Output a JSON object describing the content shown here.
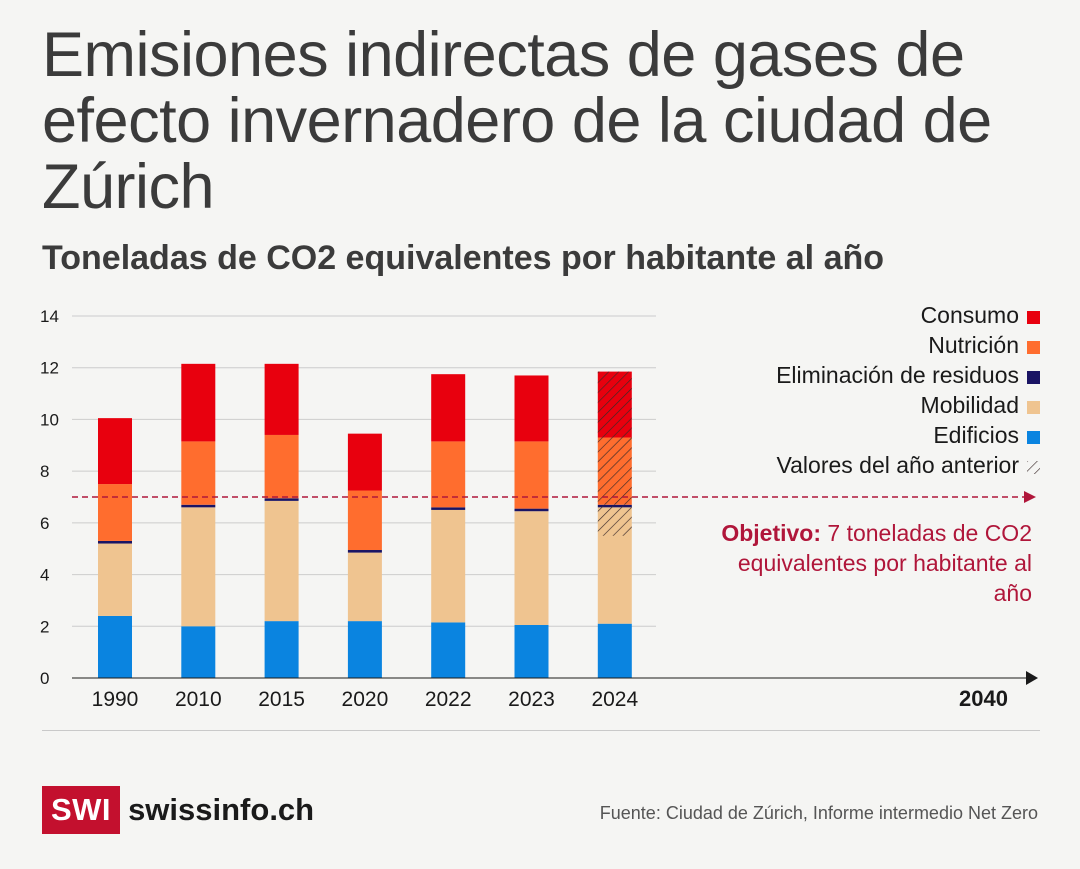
{
  "title": "Emisiones indirectas de gases de efecto invernadero de la ciudad de Zúrich",
  "subtitle": "Toneladas de CO2 equivalentes por habitante al año",
  "legend": {
    "consumo": "Consumo",
    "nutricion": "Nutrición",
    "residuos": "Eliminación de residuos",
    "mobilidad": "Mobilidad",
    "edificios": "Edificios",
    "anterior": "Valores del año anterior"
  },
  "objective": {
    "bold": "Objetivo:",
    "text": " 7 toneladas de CO2 equivalentes por habitante al año"
  },
  "source": "Fuente: Ciudad de Zúrich, Informe intermedio Net Zero",
  "logo": {
    "box": "SWI",
    "text": "swissinfo.ch"
  },
  "colors": {
    "consumo": "#e8000e",
    "nutricion": "#ff6d2e",
    "residuos": "#1a1464",
    "mobilidad": "#efc490",
    "edificios": "#0a84e0",
    "target": "#b0163a",
    "grid": "#cccccc",
    "axis": "#1a1a1a"
  },
  "chart_data": {
    "type": "bar",
    "stacked": true,
    "title": "Emisiones indirectas de gases de efecto invernadero de la ciudad de Zúrich",
    "ylabel": "Toneladas de CO2 equivalentes por habitante al año",
    "ylim": [
      0,
      14
    ],
    "yticks": [
      0,
      2,
      4,
      6,
      8,
      10,
      12,
      14
    ],
    "grid": true,
    "legend_position": "top-right",
    "categories": [
      "1990",
      "2010",
      "2015",
      "2020",
      "2022",
      "2023",
      "2024"
    ],
    "x_axis_end_label": "2040",
    "target": 7,
    "series": [
      {
        "name": "Edificios",
        "key": "edificios",
        "values": [
          2.4,
          2.0,
          2.2,
          2.2,
          2.15,
          2.05,
          2.1
        ]
      },
      {
        "name": "Mobilidad",
        "key": "mobilidad",
        "values": [
          2.8,
          4.6,
          4.65,
          2.65,
          4.35,
          4.4,
          4.5
        ]
      },
      {
        "name": "Eliminación de residuos",
        "key": "residuos",
        "values": [
          0.1,
          0.1,
          0.1,
          0.1,
          0.1,
          0.1,
          0.1
        ]
      },
      {
        "name": "Nutrición",
        "key": "nutricion",
        "values": [
          2.2,
          2.45,
          2.45,
          2.3,
          2.55,
          2.6,
          2.6
        ]
      },
      {
        "name": "Consumo",
        "key": "consumo",
        "values": [
          2.55,
          3.0,
          2.75,
          2.2,
          2.6,
          2.55,
          2.55
        ]
      }
    ],
    "previous_year_values": {
      "category": "2024",
      "series": [
        "Mobilidad",
        "Nutrición",
        "Consumo"
      ],
      "mobilidad_range": [
        5.5,
        6.65
      ]
    }
  }
}
